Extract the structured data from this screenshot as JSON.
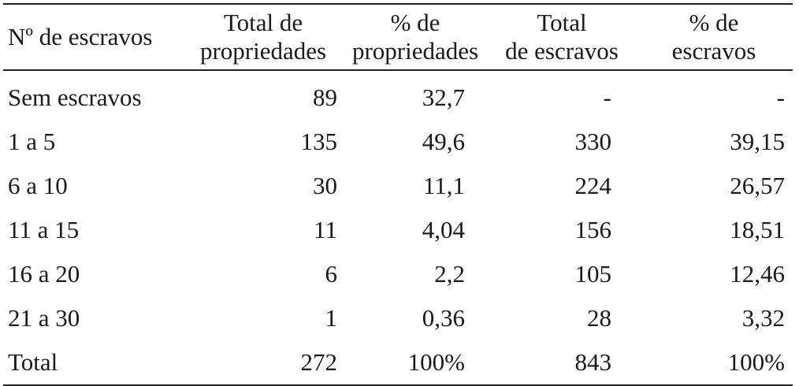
{
  "table": {
    "headers": [
      {
        "line1": "Nº de escravos",
        "line2": ""
      },
      {
        "line1": "Total de",
        "line2": "propriedades"
      },
      {
        "line1": "% de",
        "line2": "propriedades"
      },
      {
        "line1": "Total",
        "line2": "de escravos"
      },
      {
        "line1": "% de",
        "line2": "escravos"
      }
    ],
    "rows": [
      {
        "cells": [
          "Sem escravos",
          "89",
          "32,7",
          "-",
          "-"
        ]
      },
      {
        "cells": [
          "1 a 5",
          "135",
          "49,6",
          "330",
          "39,15"
        ]
      },
      {
        "cells": [
          "6 a 10",
          "30",
          "11,1",
          "224",
          "26,57"
        ]
      },
      {
        "cells": [
          "11 a 15",
          "11",
          "4,04",
          "156",
          "18,51"
        ]
      },
      {
        "cells": [
          "16 a 20",
          "6",
          "2,2",
          "105",
          "12,46"
        ]
      },
      {
        "cells": [
          "21 a 30",
          "1",
          "0,36",
          "28",
          "3,32"
        ]
      },
      {
        "cells": [
          "Total",
          "272",
          "100%",
          "843",
          "100%"
        ]
      }
    ]
  }
}
